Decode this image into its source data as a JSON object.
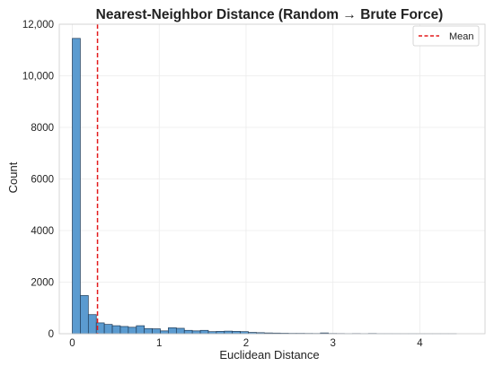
{
  "chart_data": {
    "type": "bar",
    "title": "Nearest-Neighbor Distance (Random → Brute Force)",
    "xlabel": "Euclidean Distance",
    "ylabel": "Count",
    "xlim": [
      -0.15,
      4.75
    ],
    "ylim": [
      0,
      12000
    ],
    "x_ticks": [
      0,
      1,
      2,
      3,
      4
    ],
    "x_tick_labels": [
      "0",
      "1",
      "2",
      "3",
      "4"
    ],
    "y_ticks": [
      0,
      2000,
      4000,
      6000,
      8000,
      10000,
      12000
    ],
    "y_tick_labels": [
      "0",
      "2000",
      "4000",
      "6000",
      "8000",
      "10,000",
      "12,000"
    ],
    "grid": true,
    "legend_position": "top-right",
    "bin_width": 0.0921,
    "bin_start": 0.0,
    "counts": [
      11450,
      1480,
      740,
      420,
      360,
      310,
      280,
      250,
      310,
      200,
      190,
      110,
      230,
      210,
      130,
      110,
      130,
      80,
      90,
      100,
      90,
      80,
      50,
      40,
      30,
      25,
      20,
      15,
      15,
      12,
      10,
      30,
      10,
      8,
      5,
      8,
      5,
      10,
      5,
      5,
      3,
      2,
      3,
      2,
      2,
      2,
      2,
      2
    ],
    "bar_color": "#5b9bd0",
    "bar_edge_color": "#1f3b57",
    "mean_line": {
      "value": 0.29,
      "label": "Mean",
      "color": "#e31a1c"
    }
  }
}
